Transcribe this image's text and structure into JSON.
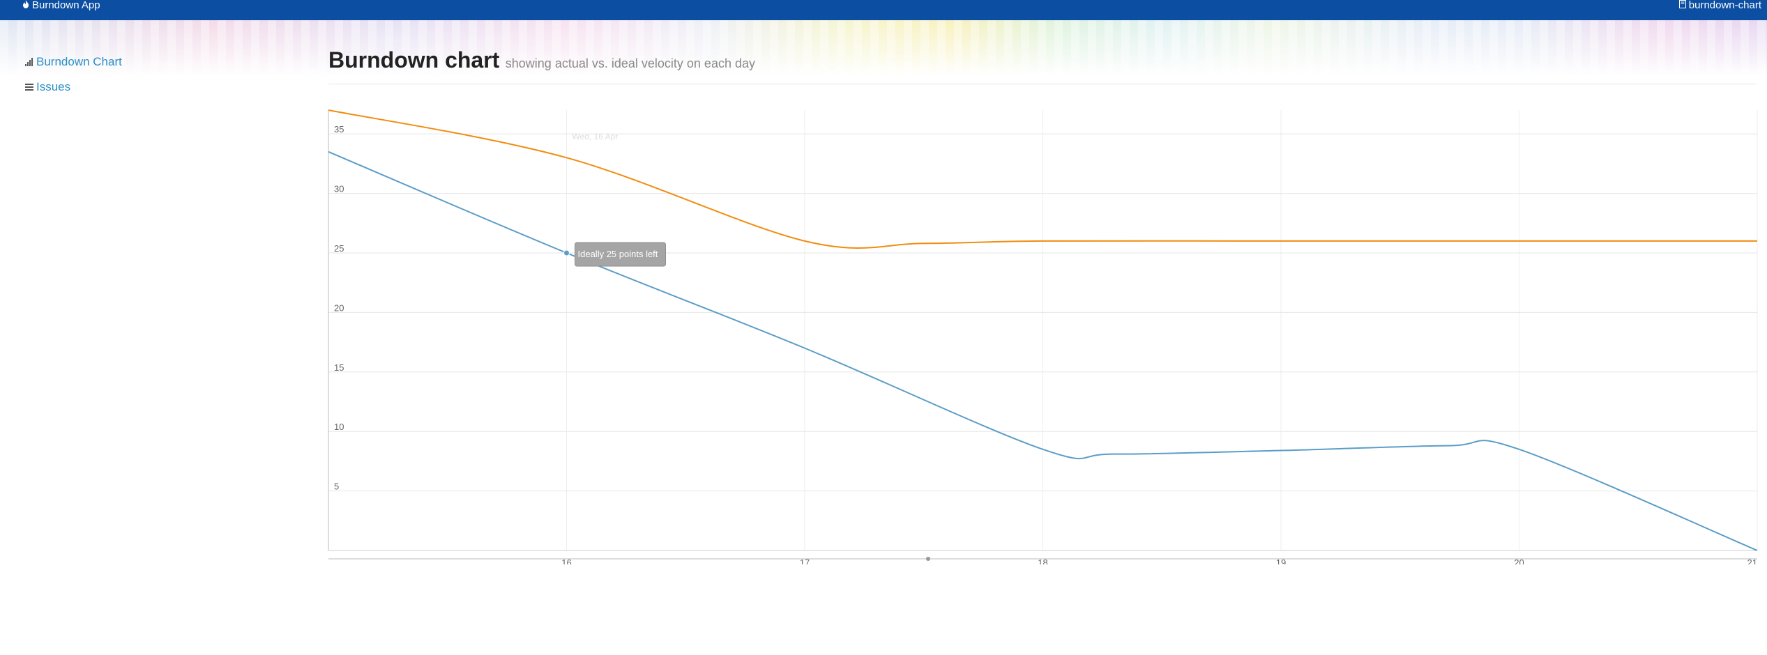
{
  "app": {
    "brand": "Burndown App",
    "repo": "burndown-chart",
    "brand_color": "#0b4ea2"
  },
  "sidebar": {
    "items": [
      {
        "label": "Burndown Chart",
        "icon": "bar-chart-icon"
      },
      {
        "label": "Issues",
        "icon": "list-icon"
      }
    ]
  },
  "header": {
    "title": "Burndown chart",
    "subtitle": "showing actual vs. ideal velocity on each day"
  },
  "chart_data": {
    "type": "line",
    "x_ticks": [
      "16",
      "17",
      "18",
      "19",
      "20",
      "21"
    ],
    "y_ticks": [
      "5",
      "10",
      "15",
      "20",
      "25",
      "30",
      "35"
    ],
    "xlim": [
      15,
      21
    ],
    "ylim": [
      0,
      37
    ],
    "grid": true,
    "series": [
      {
        "key": "actual",
        "color": "#f28c0f",
        "x": [
          15,
          16,
          17,
          17.5,
          18,
          19,
          20,
          21
        ],
        "y": [
          37,
          33,
          26,
          25.8,
          26,
          26,
          26,
          26
        ]
      },
      {
        "key": "ideal",
        "color": "#5b9dc7",
        "x": [
          15,
          16,
          17,
          18,
          18.3,
          19,
          19.7,
          20,
          21
        ],
        "y": [
          33.5,
          25,
          17,
          8.5,
          8.1,
          8.4,
          8.8,
          8.5,
          0
        ]
      }
    ],
    "tooltip": {
      "header": "Wed, 16 Apr",
      "text": "Ideally 25 points left"
    }
  }
}
